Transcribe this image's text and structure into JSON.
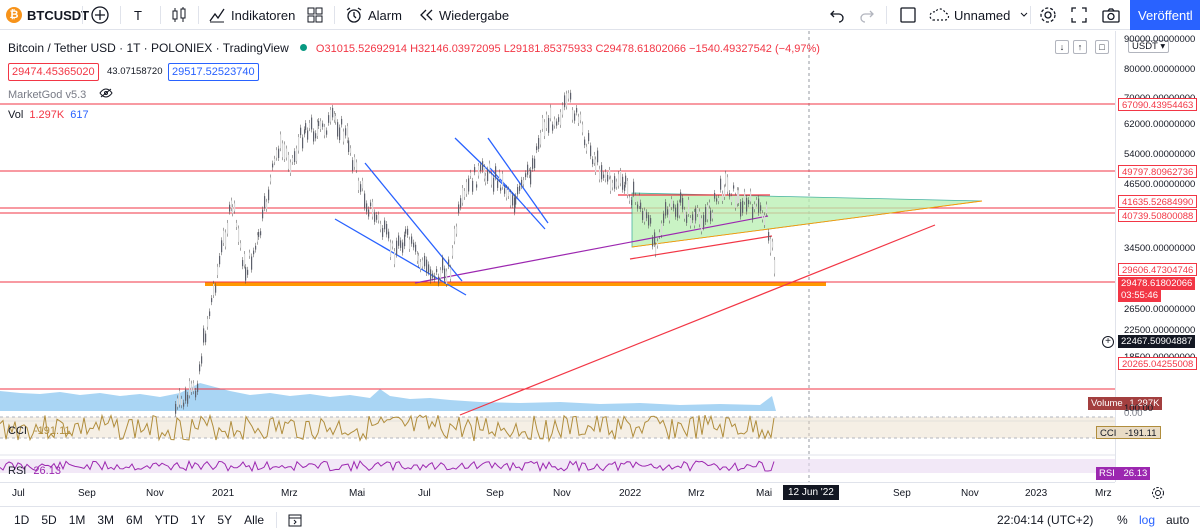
{
  "toolbar": {
    "symbol": "BTCUSDT",
    "timeframe": "T",
    "indicators": "Indikatoren",
    "alert": "Alarm",
    "replay": "Wiedergabe",
    "layout_name": "Unnamed",
    "publish": "Veröffentl"
  },
  "legend": {
    "title": "Bitcoin / Tether USD · 1T · POLONIEX · TradingView",
    "ohlc": "O31015.52692914 H32146.03972095 L29181.85375933 C29478.61802066 −1540.49327542 (−4,97%)",
    "bid": "29474.45365020",
    "spread": "43.07158720",
    "ask": "29517.52523740",
    "indicator1": "MarketGod v5.3",
    "vol_label": "Vol",
    "vol_value": "1.297K",
    "vol_ma": "617",
    "cci_label": "CCI",
    "cci_value": "-191.11",
    "rsi_label": "RSI",
    "rsi_value": "26.13"
  },
  "price_scale": {
    "currency": "USDT",
    "ticks": [
      "90000.00000000",
      "80000.00000000",
      "70000.00000000",
      "62000.00000000",
      "54000.00000000",
      "46500.00000000",
      "34500.00000000",
      "26500.00000000",
      "22500.00000000",
      "18500.00000000"
    ],
    "labels": [
      {
        "text": "67090.43954463",
        "color": "#f23645"
      },
      {
        "text": "49797.80962736",
        "color": "#f23645"
      },
      {
        "text": "41635.52684990",
        "color": "#f23645"
      },
      {
        "text": "40739.50800088",
        "color": "#f23645"
      },
      {
        "text": "29606.47304746",
        "color": "#f23645"
      },
      {
        "text": "29478.61802066",
        "color": "#f23645"
      },
      {
        "text": "03:55:46",
        "color": "#f23645"
      },
      {
        "text": "22467.50904887",
        "color": "#131722"
      },
      {
        "text": "20265.04255008",
        "color": "#f23645"
      }
    ],
    "volume_label": "Volume",
    "volume_value": "1.297K",
    "cci_ticks": [
      "100.00",
      "0.00"
    ],
    "cci_tag": "CCI",
    "cci_tag_value": "-191.11",
    "rsi_tag": "RSI",
    "rsi_tag_value": "26.13"
  },
  "time_axis": {
    "labels": [
      "Jul",
      "Sep",
      "Nov",
      "2021",
      "Mrz",
      "Mai",
      "Jul",
      "Sep",
      "Nov",
      "2022",
      "Mrz",
      "Mai",
      "Sep",
      "Nov",
      "2023",
      "Mrz"
    ],
    "crosshair": "12 Jun '22"
  },
  "bottom": {
    "ranges": [
      "1D",
      "5D",
      "1M",
      "3M",
      "6M",
      "YTD",
      "1Y",
      "5Y",
      "Alle"
    ],
    "clock": "22:04:14 (UTC+2)",
    "percent": "%",
    "log": "log",
    "auto": "auto"
  },
  "colors": {
    "accent": "#2962ff",
    "down": "#f23645",
    "up": "#089981",
    "triangle_fill": "#b7f0b1",
    "support": "#ff9800"
  }
}
